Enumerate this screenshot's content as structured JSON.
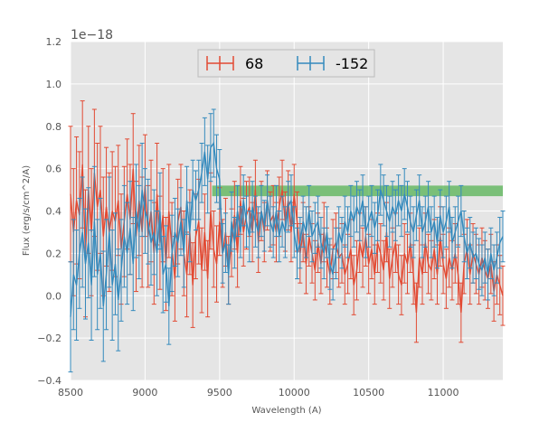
{
  "chart_data": {
    "type": "line",
    "title": "",
    "xlabel": "Wavelength (A)",
    "ylabel": "Flux (erg/s/cm^2/A)",
    "y_offset_label": "1e−18",
    "xlim": [
      8500,
      11400
    ],
    "ylim": [
      -0.4,
      1.2
    ],
    "xticks": [
      "8500",
      "9000",
      "9500",
      "10000",
      "10500",
      "11000"
    ],
    "xtick_values": [
      8500,
      9000,
      9500,
      10000,
      10500,
      11000
    ],
    "yticks": [
      "−0.4",
      "−0.2",
      "0.0",
      "0.2",
      "0.4",
      "0.6",
      "0.8",
      "1.0",
      "1.2"
    ],
    "ytick_values": [
      -0.4,
      -0.2,
      0.0,
      0.2,
      0.4,
      0.6,
      0.8,
      1.0,
      1.2
    ],
    "band": {
      "x_start": 9450,
      "x_end": 11400,
      "y_low": 0.47,
      "y_high": 0.52,
      "color": "#4daf4a"
    },
    "colors": {
      "background": "#e5e5e5",
      "grid": "#ffffff",
      "series_68": "#e24a33",
      "series_m152": "#348abd"
    },
    "legend_position": "top-center",
    "series": [
      {
        "name": "68",
        "color": "#e24a33",
        "x": [
          8500,
          8520,
          8540,
          8560,
          8580,
          8600,
          8620,
          8640,
          8660,
          8680,
          8700,
          8720,
          8740,
          8760,
          8780,
          8800,
          8820,
          8840,
          8860,
          8880,
          8900,
          8920,
          8940,
          8960,
          8980,
          9000,
          9020,
          9040,
          9060,
          9080,
          9100,
          9120,
          9140,
          9160,
          9180,
          9200,
          9220,
          9240,
          9260,
          9280,
          9300,
          9320,
          9340,
          9360,
          9380,
          9400,
          9420,
          9440,
          9460,
          9480,
          9500,
          9520,
          9540,
          9560,
          9580,
          9600,
          9620,
          9640,
          9660,
          9680,
          9700,
          9720,
          9740,
          9760,
          9780,
          9800,
          9820,
          9840,
          9860,
          9880,
          9900,
          9920,
          9940,
          9960,
          9980,
          10000,
          10020,
          10040,
          10060,
          10080,
          10100,
          10120,
          10140,
          10160,
          10180,
          10200,
          10220,
          10240,
          10260,
          10280,
          10300,
          10320,
          10340,
          10360,
          10380,
          10400,
          10420,
          10440,
          10460,
          10480,
          10500,
          10520,
          10540,
          10560,
          10580,
          10600,
          10620,
          10640,
          10660,
          10680,
          10700,
          10720,
          10740,
          10760,
          10780,
          10800,
          10820,
          10840,
          10860,
          10880,
          10900,
          10920,
          10940,
          10960,
          10980,
          11000,
          11020,
          11040,
          11060,
          11080,
          11100,
          11120,
          11140,
          11160,
          11180,
          11200,
          11220,
          11240,
          11260,
          11280,
          11300,
          11320,
          11340,
          11360,
          11380,
          11400
        ],
        "y": [
          0.48,
          0.3,
          0.45,
          0.38,
          0.62,
          0.2,
          0.5,
          0.3,
          0.58,
          0.42,
          0.5,
          0.28,
          0.42,
          0.3,
          0.4,
          0.35,
          0.45,
          0.22,
          0.35,
          0.48,
          0.36,
          0.6,
          0.28,
          0.45,
          0.3,
          0.52,
          0.28,
          0.4,
          0.2,
          0.48,
          0.25,
          0.38,
          0.15,
          0.4,
          0.22,
          0.08,
          0.35,
          0.42,
          0.2,
          0.1,
          0.3,
          0.05,
          0.28,
          0.35,
          0.12,
          0.3,
          0.08,
          0.4,
          0.22,
          0.15,
          0.35,
          0.2,
          0.3,
          0.12,
          0.25,
          0.38,
          0.2,
          0.45,
          0.3,
          0.38,
          0.42,
          0.3,
          0.5,
          0.25,
          0.4,
          0.3,
          0.45,
          0.35,
          0.38,
          0.3,
          0.42,
          0.5,
          0.35,
          0.45,
          0.3,
          0.48,
          0.35,
          0.2,
          0.3,
          0.15,
          0.28,
          0.2,
          0.12,
          0.25,
          0.15,
          0.3,
          0.18,
          0.1,
          0.22,
          0.25,
          0.18,
          0.2,
          0.1,
          0.15,
          0.22,
          0.05,
          0.12,
          0.25,
          0.18,
          0.28,
          0.15,
          0.22,
          0.1,
          0.25,
          0.2,
          0.12,
          0.3,
          0.08,
          0.18,
          0.25,
          0.1,
          0.05,
          0.2,
          0.15,
          0.25,
          0.1,
          -0.08,
          0.18,
          0.1,
          0.25,
          0.15,
          0.12,
          0.22,
          0.1,
          0.28,
          0.15,
          0.08,
          0.18,
          0.12,
          0.2,
          0.1,
          -0.08,
          0.15,
          0.22,
          0.1,
          0.2,
          0.15,
          0.1,
          0.18,
          0.12,
          0.08,
          0.15,
          0.02,
          0.1,
          0.05,
          0.0
        ],
        "err": [
          0.32,
          0.3,
          0.3,
          0.3,
          0.3,
          0.3,
          0.3,
          0.3,
          0.3,
          0.3,
          0.3,
          0.28,
          0.28,
          0.28,
          0.28,
          0.26,
          0.26,
          0.26,
          0.26,
          0.26,
          0.26,
          0.26,
          0.26,
          0.26,
          0.26,
          0.24,
          0.24,
          0.24,
          0.24,
          0.24,
          0.22,
          0.22,
          0.22,
          0.22,
          0.22,
          0.2,
          0.2,
          0.2,
          0.2,
          0.2,
          0.2,
          0.2,
          0.2,
          0.2,
          0.2,
          0.18,
          0.18,
          0.18,
          0.18,
          0.18,
          0.16,
          0.16,
          0.16,
          0.16,
          0.16,
          0.16,
          0.16,
          0.16,
          0.16,
          0.16,
          0.14,
          0.14,
          0.14,
          0.14,
          0.14,
          0.14,
          0.14,
          0.14,
          0.14,
          0.14,
          0.14,
          0.14,
          0.14,
          0.14,
          0.14,
          0.14,
          0.14,
          0.14,
          0.14,
          0.14,
          0.14,
          0.14,
          0.14,
          0.14,
          0.14,
          0.14,
          0.14,
          0.14,
          0.14,
          0.14,
          0.14,
          0.14,
          0.14,
          0.14,
          0.14,
          0.14,
          0.14,
          0.14,
          0.14,
          0.14,
          0.14,
          0.14,
          0.14,
          0.14,
          0.14,
          0.14,
          0.14,
          0.14,
          0.14,
          0.14,
          0.14,
          0.14,
          0.14,
          0.14,
          0.14,
          0.14,
          0.14,
          0.14,
          0.14,
          0.14,
          0.14,
          0.14,
          0.14,
          0.14,
          0.14,
          0.14,
          0.14,
          0.14,
          0.14,
          0.14,
          0.14,
          0.14,
          0.14,
          0.14,
          0.14,
          0.14,
          0.14,
          0.14,
          0.14,
          0.14,
          0.14,
          0.14,
          0.14,
          0.14,
          0.14,
          0.14
        ]
      },
      {
        "name": "-152",
        "color": "#348abd",
        "x": [
          8500,
          8520,
          8540,
          8560,
          8580,
          8600,
          8620,
          8640,
          8660,
          8680,
          8700,
          8720,
          8740,
          8760,
          8780,
          8800,
          8820,
          8840,
          8860,
          8880,
          8900,
          8920,
          8940,
          8960,
          8980,
          9000,
          9020,
          9040,
          9060,
          9080,
          9100,
          9120,
          9140,
          9160,
          9180,
          9200,
          9220,
          9240,
          9260,
          9280,
          9300,
          9320,
          9340,
          9360,
          9380,
          9400,
          9420,
          9440,
          9460,
          9480,
          9500,
          9520,
          9540,
          9560,
          9580,
          9600,
          9620,
          9640,
          9660,
          9680,
          9700,
          9720,
          9740,
          9760,
          9780,
          9800,
          9820,
          9840,
          9860,
          9880,
          9900,
          9920,
          9940,
          9960,
          9980,
          10000,
          10020,
          10040,
          10060,
          10080,
          10100,
          10120,
          10140,
          10160,
          10180,
          10200,
          10220,
          10240,
          10260,
          10280,
          10300,
          10320,
          10340,
          10360,
          10380,
          10400,
          10420,
          10440,
          10460,
          10480,
          10500,
          10520,
          10540,
          10560,
          10580,
          10600,
          10620,
          10640,
          10660,
          10680,
          10700,
          10720,
          10740,
          10760,
          10780,
          10800,
          10820,
          10840,
          10860,
          10880,
          10900,
          10920,
          10940,
          10960,
          10980,
          11000,
          11020,
          11040,
          11060,
          11080,
          11100,
          11120,
          11140,
          11160,
          11180,
          11200,
          11220,
          11240,
          11260,
          11280,
          11300,
          11320,
          11340,
          11360,
          11380,
          11400
        ],
        "y": [
          -0.1,
          0.1,
          0.05,
          0.2,
          0.3,
          0.15,
          0.25,
          0.05,
          0.35,
          0.1,
          0.2,
          -0.05,
          0.1,
          0.3,
          0.05,
          0.15,
          -0.02,
          0.12,
          0.28,
          0.2,
          0.32,
          0.15,
          0.4,
          0.3,
          0.5,
          0.4,
          0.35,
          0.25,
          0.3,
          0.2,
          0.4,
          0.1,
          0.15,
          -0.05,
          0.2,
          0.3,
          0.25,
          0.35,
          0.2,
          0.45,
          0.3,
          0.5,
          0.45,
          0.5,
          0.58,
          0.68,
          0.55,
          0.7,
          0.72,
          0.6,
          0.55,
          0.2,
          0.25,
          0.1,
          0.35,
          0.25,
          0.4,
          0.3,
          0.45,
          0.35,
          0.28,
          0.42,
          0.35,
          0.3,
          0.4,
          0.33,
          0.45,
          0.35,
          0.3,
          0.4,
          0.28,
          0.35,
          0.3,
          0.42,
          0.45,
          0.3,
          0.2,
          0.25,
          0.35,
          0.3,
          0.4,
          0.28,
          0.32,
          0.35,
          0.25,
          0.2,
          0.3,
          0.15,
          0.1,
          0.2,
          0.3,
          0.25,
          0.35,
          0.3,
          0.4,
          0.35,
          0.42,
          0.38,
          0.45,
          0.3,
          0.35,
          0.4,
          0.32,
          0.38,
          0.5,
          0.45,
          0.4,
          0.35,
          0.42,
          0.38,
          0.45,
          0.4,
          0.48,
          0.42,
          0.35,
          0.3,
          0.38,
          0.45,
          0.3,
          0.35,
          0.42,
          0.3,
          0.35,
          0.25,
          0.38,
          0.3,
          0.35,
          0.42,
          0.25,
          0.3,
          0.35,
          0.4,
          0.28,
          0.2,
          0.25,
          0.18,
          0.2,
          0.15,
          0.12,
          0.18,
          0.1,
          0.2,
          0.12,
          0.18,
          0.25,
          0.28
        ],
        "err": [
          0.26,
          0.26,
          0.26,
          0.26,
          0.26,
          0.26,
          0.26,
          0.26,
          0.26,
          0.26,
          0.26,
          0.26,
          0.26,
          0.26,
          0.26,
          0.24,
          0.24,
          0.24,
          0.24,
          0.24,
          0.22,
          0.22,
          0.22,
          0.22,
          0.22,
          0.2,
          0.2,
          0.2,
          0.2,
          0.2,
          0.18,
          0.18,
          0.18,
          0.18,
          0.18,
          0.16,
          0.16,
          0.16,
          0.16,
          0.16,
          0.14,
          0.14,
          0.14,
          0.14,
          0.14,
          0.16,
          0.16,
          0.16,
          0.16,
          0.16,
          0.14,
          0.14,
          0.14,
          0.14,
          0.14,
          0.12,
          0.12,
          0.12,
          0.12,
          0.12,
          0.12,
          0.12,
          0.12,
          0.12,
          0.12,
          0.12,
          0.12,
          0.12,
          0.12,
          0.12,
          0.12,
          0.12,
          0.12,
          0.12,
          0.12,
          0.12,
          0.12,
          0.12,
          0.12,
          0.12,
          0.12,
          0.12,
          0.12,
          0.12,
          0.12,
          0.12,
          0.12,
          0.12,
          0.12,
          0.12,
          0.12,
          0.12,
          0.12,
          0.12,
          0.12,
          0.12,
          0.12,
          0.12,
          0.12,
          0.12,
          0.12,
          0.12,
          0.12,
          0.12,
          0.12,
          0.12,
          0.12,
          0.12,
          0.12,
          0.12,
          0.12,
          0.12,
          0.12,
          0.12,
          0.12,
          0.12,
          0.12,
          0.12,
          0.12,
          0.12,
          0.12,
          0.12,
          0.12,
          0.12,
          0.12,
          0.12,
          0.12,
          0.12,
          0.12,
          0.12,
          0.12,
          0.12,
          0.12,
          0.12,
          0.12,
          0.12,
          0.12,
          0.12,
          0.12,
          0.12,
          0.12,
          0.12,
          0.12,
          0.12,
          0.12,
          0.12
        ]
      }
    ]
  }
}
